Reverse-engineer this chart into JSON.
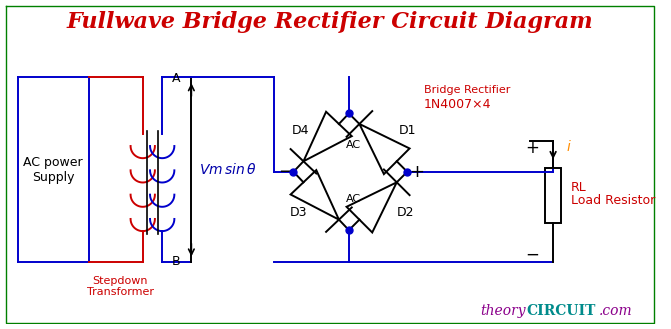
{
  "title": "Fullwave Bridge Rectifier Circuit Diagram",
  "title_color": "#cc0000",
  "title_fontsize": 16,
  "bg_color": "#ffffff",
  "border_color": "#0000cc",
  "line_color": "#0000cc",
  "red_color": "#cc0000",
  "black_color": "#000000",
  "label_ac_power": "AC power\nSupply",
  "label_stepdown": "Stepdown\nTransformer",
  "label_A": "A",
  "label_B": "B",
  "label_D1": "D1",
  "label_D2": "D2",
  "label_D3": "D3",
  "label_D4": "D4",
  "label_AC_top": "AC",
  "label_AC_bot": "AC",
  "label_bridge_rectifier": "Bridge Rectifier",
  "label_1n4007": "1N4007×4",
  "label_rl_1": "RL",
  "label_rl_2": "Load Resistor",
  "label_i": "i",
  "label_theory": "theory",
  "label_circuit": "CIRCUIT",
  "label_com": ".com"
}
